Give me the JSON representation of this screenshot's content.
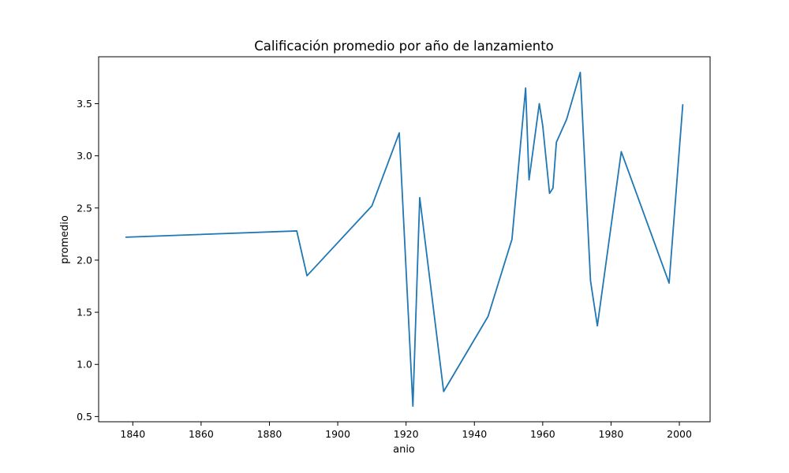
{
  "chart_data": {
    "type": "line",
    "title": "Calificación promedio por año de lanzamiento",
    "xlabel": "anio",
    "ylabel": "promedio",
    "xlim": [
      1830,
      2009
    ],
    "ylim": [
      0.45,
      3.95
    ],
    "xticks": [
      1840,
      1860,
      1880,
      1900,
      1920,
      1940,
      1960,
      1980,
      2000
    ],
    "yticks": [
      0.5,
      1.0,
      1.5,
      2.0,
      2.5,
      3.0,
      3.5
    ],
    "xtick_labels": [
      "1840",
      "1860",
      "1880",
      "1900",
      "1920",
      "1940",
      "1960",
      "1980",
      "2000"
    ],
    "ytick_labels": [
      "0.5",
      "1.0",
      "1.5",
      "2.0",
      "2.5",
      "3.0",
      "3.5"
    ],
    "grid": false,
    "series": [
      {
        "color": "#1f77b4",
        "x": [
          1838,
          1888,
          1891,
          1910,
          1918,
          1922,
          1924,
          1931,
          1944,
          1951,
          1955,
          1956,
          1959,
          1960,
          1962,
          1963,
          1964,
          1967,
          1971,
          1974,
          1976,
          1983,
          1997,
          2001
        ],
        "y": [
          2.22,
          2.28,
          1.85,
          2.52,
          3.22,
          0.6,
          2.6,
          0.74,
          1.46,
          2.2,
          3.65,
          2.77,
          3.5,
          3.29,
          2.64,
          2.69,
          3.13,
          3.35,
          3.8,
          1.8,
          1.37,
          3.04,
          1.78,
          3.49
        ]
      }
    ]
  }
}
